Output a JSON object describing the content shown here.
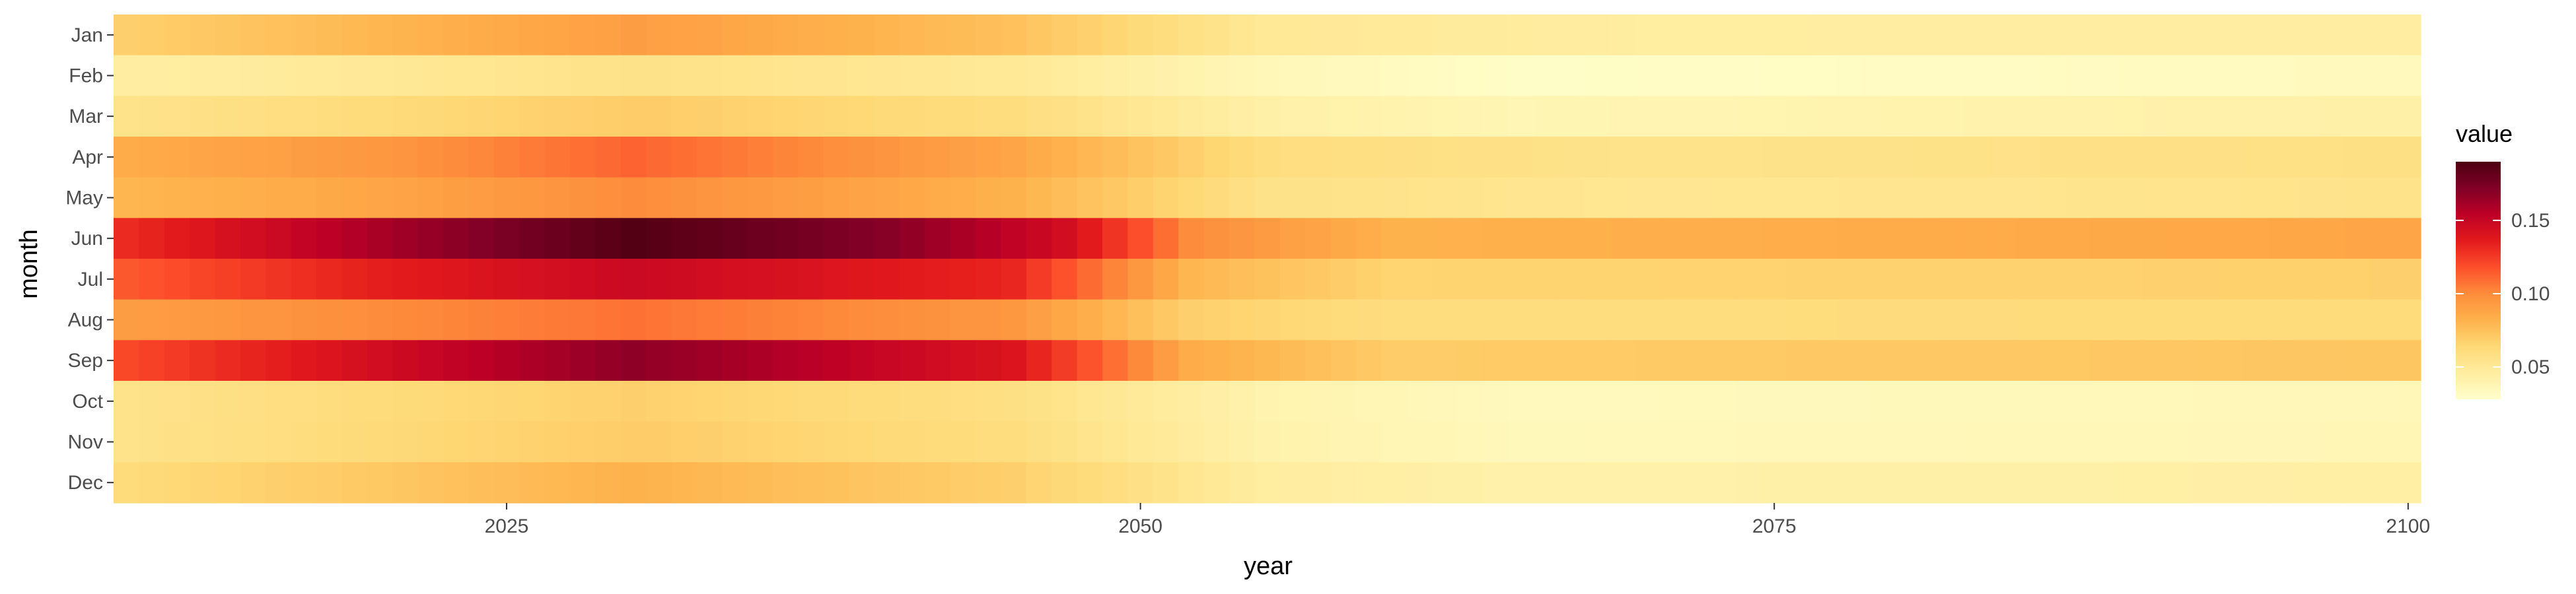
{
  "chart_data": {
    "type": "heatmap",
    "xlabel": "year",
    "ylabel": "month",
    "x_range": [
      2010,
      2100
    ],
    "x_ticks": [
      "2025",
      "2050",
      "2075",
      "2100"
    ],
    "months": [
      "Jan",
      "Feb",
      "Mar",
      "Apr",
      "May",
      "Jun",
      "Jul",
      "Aug",
      "Sep",
      "Oct",
      "Nov",
      "Dec"
    ],
    "month_profiles": {
      "note_units": "value",
      "Jan": [
        [
          2010,
          0.068
        ],
        [
          2020,
          0.08
        ],
        [
          2030,
          0.092
        ],
        [
          2045,
          0.075
        ],
        [
          2055,
          0.05
        ],
        [
          2070,
          0.046
        ],
        [
          2100,
          0.045
        ]
      ],
      "Feb": [
        [
          2010,
          0.045
        ],
        [
          2020,
          0.05
        ],
        [
          2030,
          0.056
        ],
        [
          2045,
          0.05
        ],
        [
          2055,
          0.036
        ],
        [
          2065,
          0.03
        ],
        [
          2100,
          0.034
        ]
      ],
      "Mar": [
        [
          2010,
          0.055
        ],
        [
          2020,
          0.062
        ],
        [
          2030,
          0.07
        ],
        [
          2045,
          0.06
        ],
        [
          2055,
          0.043
        ],
        [
          2065,
          0.038
        ],
        [
          2100,
          0.043
        ]
      ],
      "Apr": [
        [
          2010,
          0.085
        ],
        [
          2020,
          0.095
        ],
        [
          2030,
          0.112
        ],
        [
          2045,
          0.088
        ],
        [
          2055,
          0.06
        ],
        [
          2070,
          0.055
        ],
        [
          2100,
          0.058
        ]
      ],
      "May": [
        [
          2010,
          0.08
        ],
        [
          2020,
          0.088
        ],
        [
          2030,
          0.1
        ],
        [
          2045,
          0.082
        ],
        [
          2055,
          0.056
        ],
        [
          2070,
          0.052
        ],
        [
          2100,
          0.055
        ]
      ],
      "Jun": [
        [
          2010,
          0.13
        ],
        [
          2020,
          0.16
        ],
        [
          2030,
          0.188
        ],
        [
          2040,
          0.17
        ],
        [
          2047,
          0.145
        ],
        [
          2052,
          0.1
        ],
        [
          2060,
          0.082
        ],
        [
          2100,
          0.088
        ]
      ],
      "Jul": [
        [
          2010,
          0.115
        ],
        [
          2020,
          0.135
        ],
        [
          2030,
          0.148
        ],
        [
          2045,
          0.132
        ],
        [
          2052,
          0.08
        ],
        [
          2060,
          0.066
        ],
        [
          2100,
          0.068
        ]
      ],
      "Aug": [
        [
          2010,
          0.092
        ],
        [
          2020,
          0.1
        ],
        [
          2030,
          0.108
        ],
        [
          2045,
          0.095
        ],
        [
          2052,
          0.068
        ],
        [
          2060,
          0.06
        ],
        [
          2100,
          0.062
        ]
      ],
      "Sep": [
        [
          2010,
          0.12
        ],
        [
          2020,
          0.145
        ],
        [
          2030,
          0.168
        ],
        [
          2045,
          0.14
        ],
        [
          2052,
          0.085
        ],
        [
          2060,
          0.07
        ],
        [
          2100,
          0.073
        ]
      ],
      "Oct": [
        [
          2010,
          0.055
        ],
        [
          2020,
          0.062
        ],
        [
          2030,
          0.068
        ],
        [
          2045,
          0.058
        ],
        [
          2055,
          0.04
        ],
        [
          2065,
          0.034
        ],
        [
          2100,
          0.036
        ]
      ],
      "Nov": [
        [
          2010,
          0.055
        ],
        [
          2020,
          0.063
        ],
        [
          2030,
          0.07
        ],
        [
          2045,
          0.06
        ],
        [
          2055,
          0.041
        ],
        [
          2065,
          0.035
        ],
        [
          2100,
          0.037
        ]
      ],
      "Dec": [
        [
          2010,
          0.062
        ],
        [
          2020,
          0.072
        ],
        [
          2030,
          0.082
        ],
        [
          2045,
          0.068
        ],
        [
          2055,
          0.046
        ],
        [
          2065,
          0.042
        ],
        [
          2100,
          0.044
        ]
      ]
    },
    "legend": {
      "title": "value",
      "ticks": [
        "0.05",
        "0.10",
        "0.15"
      ],
      "tick_values": [
        0.05,
        0.1,
        0.15
      ],
      "range": [
        0.028,
        0.19
      ],
      "placement": "right"
    },
    "colors": [
      "#ffffcc",
      "#ffeda0",
      "#fed976",
      "#feb24c",
      "#fd8d3c",
      "#fc4e2a",
      "#e31a1c",
      "#bd0026",
      "#800026",
      "#4d0012"
    ],
    "panel_background": "#ffffff",
    "grid": false
  }
}
